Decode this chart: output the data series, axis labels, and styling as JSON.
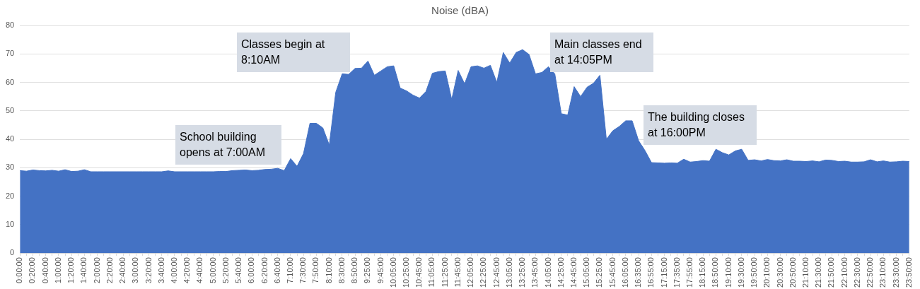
{
  "chart_data": {
    "type": "area",
    "title": "Noise (dBA)",
    "categories": [
      "0:00:00",
      null,
      "0:20:00",
      null,
      "0:40:00",
      null,
      "1:00:00",
      null,
      "1:20:00",
      null,
      "1:40:00",
      null,
      "2:00:00",
      null,
      "2:20:00",
      null,
      "2:40:00",
      null,
      "3:00:00",
      null,
      "3:20:00",
      null,
      "3:40:00",
      null,
      "4:00:00",
      null,
      "4:20:00",
      null,
      "4:40:00",
      null,
      "5:00:00",
      null,
      "5:20:00",
      null,
      "5:40:00",
      null,
      "6:00:00",
      null,
      "6:20:00",
      null,
      "6:40:00",
      null,
      "7:10:00",
      null,
      "7:30:00",
      null,
      "7:50:00",
      null,
      "8:10:00",
      null,
      "8:30:00",
      null,
      "8:50:00",
      null,
      "9:25:00",
      null,
      "9:45:00",
      null,
      "10:05:00",
      null,
      "10:25:00",
      null,
      "10:45:00",
      null,
      "11:05:00",
      null,
      "11:25:00",
      null,
      "11:45:00",
      null,
      "12:05:00",
      null,
      "12:25:00",
      null,
      "12:45:00",
      null,
      "13:05:00",
      null,
      "13:25:00",
      null,
      "13:45:00",
      null,
      "14:05:00",
      null,
      "14:25:00",
      null,
      "14:45:00",
      null,
      "15:05:00",
      null,
      "15:25:00",
      null,
      "15:45:00",
      null,
      "16:05:00",
      null,
      "16:35:00",
      null,
      "16:55:00",
      null,
      "17:15:00",
      null,
      "17:35:00",
      null,
      "17:55:00",
      null,
      "18:15:00",
      null,
      "18:50:00",
      null,
      "19:10:00",
      null,
      "19:30:00",
      null,
      "19:50:00",
      null,
      "20:10:00",
      null,
      "20:30:00",
      null,
      "20:50:00",
      null,
      "21:10:00",
      null,
      "21:30:00",
      null,
      "21:50:00",
      null,
      "22:10:00",
      null,
      "22:30:00",
      null,
      "22:50:00",
      null,
      "23:10:00",
      null,
      "23:30:00",
      null,
      "23:50:00"
    ],
    "series": [
      {
        "color": "#4472c4",
        "values": [
          29,
          28.8,
          29.2,
          29,
          28.9,
          29.1,
          28.8,
          29.3,
          28.7,
          28.8,
          29.3,
          28.6,
          28.6,
          28.6,
          28.6,
          28.6,
          28.6,
          28.6,
          28.6,
          28.6,
          28.6,
          28.6,
          28.6,
          28.9,
          28.6,
          28.6,
          28.6,
          28.6,
          28.6,
          28.6,
          28.6,
          28.7,
          28.7,
          29,
          29.1,
          29.2,
          29,
          29.1,
          29.4,
          29.5,
          29.8,
          29,
          33.2,
          30.5,
          35,
          45.6,
          45.6,
          44,
          38,
          56.5,
          63,
          62.8,
          64.9,
          65,
          67.5,
          62.5,
          64,
          65.5,
          65.8,
          58,
          57,
          55.5,
          54.5,
          56.8,
          63.2,
          63.8,
          64,
          54,
          64.2,
          59.5,
          65.5,
          65.8,
          65,
          66,
          60,
          70.5,
          66.8,
          70.5,
          71.5,
          69.8,
          63,
          63.5,
          65.5,
          63,
          49,
          48.5,
          58.5,
          55,
          58.3,
          59.7,
          62.5,
          40,
          43,
          44.5,
          46.5,
          46.5,
          39.5,
          36,
          31.8,
          31.7,
          31.6,
          31.7,
          31.6,
          33,
          32,
          32.2,
          32.5,
          32.3,
          36.5,
          35.3,
          34.5,
          35.9,
          36.5,
          32.6,
          32.8,
          32.4,
          32.9,
          32.5,
          32.4,
          32.8,
          32.3,
          32.3,
          32.2,
          32.4,
          32.1,
          32.7,
          32.6,
          32.2,
          32.3,
          32,
          32,
          32.1,
          32.8,
          32.1,
          32.4,
          32,
          32.1,
          32.3,
          32.2
        ]
      }
    ],
    "ylim": [
      0,
      80
    ],
    "yticks": [
      0,
      10,
      20,
      30,
      40,
      50,
      60,
      70,
      80
    ],
    "grid": "y",
    "legend": false,
    "marker": "none",
    "annotations": [
      "School building opens at 7:00AM",
      "Classes begin at 8:10AM",
      "Main classes end at 14:05PM",
      "The building closes at 16:00PM"
    ]
  }
}
